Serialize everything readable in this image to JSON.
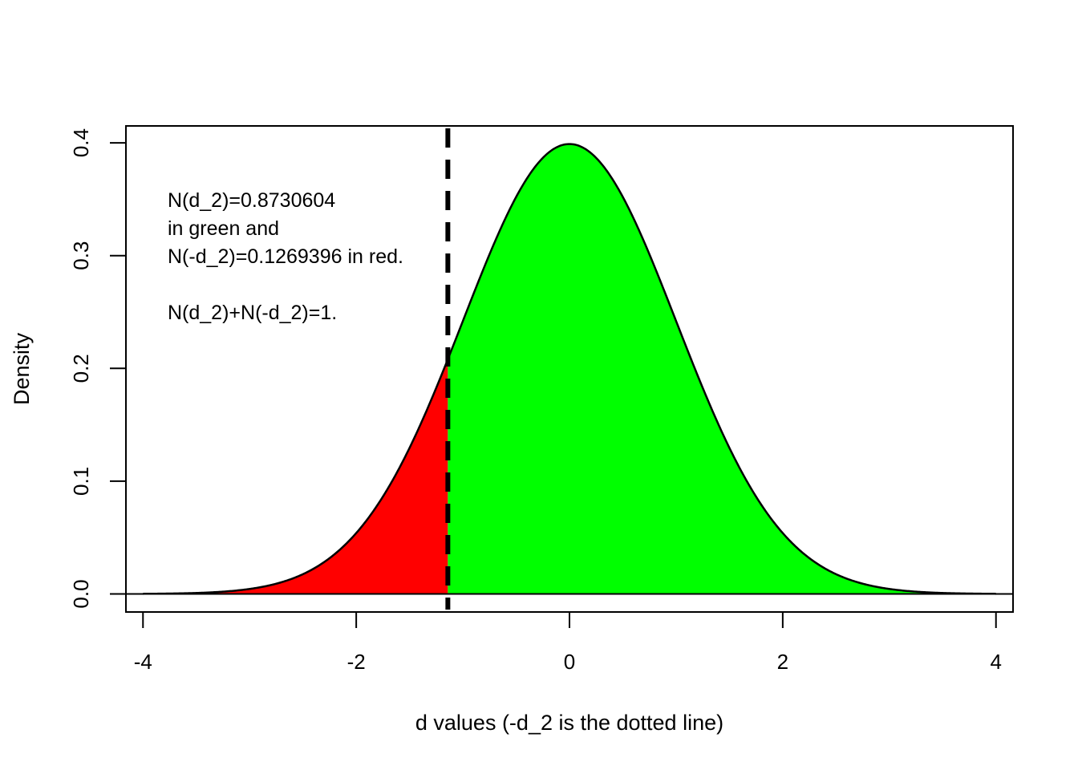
{
  "chart_data": {
    "type": "area",
    "xlabel": "d values (-d_2 is the dotted line)",
    "ylabel": "Density",
    "xlim": [
      -4.16,
      4.16
    ],
    "ylim": [
      -0.016,
      0.415
    ],
    "x_ticks": [
      -4,
      -2,
      0,
      2,
      4
    ],
    "x_tick_labels": [
      "-4",
      "-2",
      "0",
      "2",
      "4"
    ],
    "y_ticks": [
      0.0,
      0.1,
      0.2,
      0.3,
      0.4
    ],
    "y_tick_labels": [
      "0.0",
      "0.1",
      "0.2",
      "0.3",
      "0.4"
    ],
    "curve": {
      "distribution": "standard normal density",
      "x_range": [
        -4,
        4
      ]
    },
    "cutoff_x": -1.1407,
    "regions": [
      {
        "from": -4,
        "to": -1.1407,
        "color": "#ff0000"
      },
      {
        "from": -1.1407,
        "to": 4,
        "color": "#00ff00"
      }
    ],
    "reference_line_y": 0,
    "grid": false,
    "annotation_lines": [
      "N(d_2)=0.8730604",
      "in green and",
      "N(-d_2)=0.1269396 in red.",
      "",
      "N(d_2)+N(-d_2)=1."
    ]
  }
}
